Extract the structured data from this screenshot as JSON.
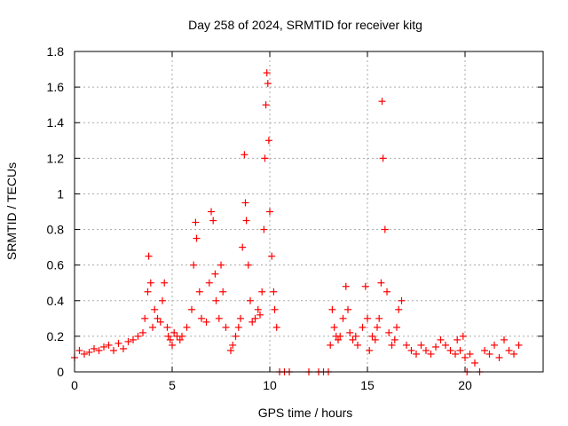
{
  "chart_data": {
    "type": "scatter",
    "title": "Day 258 of 2024, SRMTID for receiver kitg",
    "xlabel": "GPS time / hours",
    "ylabel": "SRMTID / TECUs",
    "xlim": [
      0,
      24
    ],
    "ylim": [
      0,
      1.8
    ],
    "xticks": [
      0,
      5,
      10,
      15,
      20
    ],
    "xtick_labels": [
      "0",
      "5",
      "10",
      "15",
      "20"
    ],
    "yticks": [
      0,
      0.2,
      0.4,
      0.6,
      0.8,
      1.0,
      1.2,
      1.4,
      1.6,
      1.8
    ],
    "ytick_labels": [
      "0",
      "0.2",
      "0.4",
      "0.6",
      "0.8",
      "1",
      "1.2",
      "1.4",
      "1.6",
      "1.8"
    ],
    "grid": true,
    "marker": "+",
    "color": "#ff0000",
    "series": [
      {
        "name": "SRMTID",
        "x": [
          0.0,
          0.25,
          0.5,
          0.75,
          1.0,
          1.25,
          1.5,
          1.75,
          2.0,
          2.25,
          2.5,
          2.75,
          3.0,
          3.25,
          3.5,
          3.6,
          3.75,
          3.8,
          3.9,
          4.0,
          4.1,
          4.25,
          4.4,
          4.5,
          4.6,
          4.75,
          4.8,
          4.9,
          5.0,
          5.1,
          5.25,
          5.4,
          5.5,
          5.75,
          6.0,
          6.1,
          6.2,
          6.25,
          6.4,
          6.5,
          6.75,
          6.9,
          7.0,
          7.1,
          7.2,
          7.25,
          7.4,
          7.5,
          7.6,
          7.75,
          8.0,
          8.1,
          8.25,
          8.4,
          8.5,
          8.6,
          8.7,
          8.75,
          8.8,
          8.9,
          9.0,
          9.1,
          9.25,
          9.4,
          9.5,
          9.6,
          9.7,
          9.75,
          9.8,
          9.85,
          9.9,
          9.95,
          10.0,
          10.1,
          10.2,
          10.25,
          10.35,
          10.5,
          10.75,
          11.0,
          12.0,
          12.5,
          12.75,
          13.0,
          13.1,
          13.2,
          13.3,
          13.4,
          13.5,
          13.6,
          13.75,
          13.9,
          14.0,
          14.1,
          14.25,
          14.4,
          14.5,
          14.75,
          14.9,
          15.0,
          15.1,
          15.25,
          15.4,
          15.5,
          15.6,
          15.7,
          15.75,
          15.8,
          15.9,
          16.0,
          16.1,
          16.25,
          16.4,
          16.5,
          16.6,
          16.75,
          17.0,
          17.25,
          17.5,
          17.75,
          18.0,
          18.25,
          18.5,
          18.75,
          19.0,
          19.25,
          19.5,
          19.6,
          19.75,
          19.9,
          20.0,
          20.1,
          20.25,
          20.5,
          20.75,
          21.0,
          21.25,
          21.5,
          21.75,
          22.0,
          22.25,
          22.5,
          22.75
        ],
        "y": [
          0.08,
          0.12,
          0.1,
          0.11,
          0.13,
          0.12,
          0.14,
          0.15,
          0.12,
          0.16,
          0.13,
          0.17,
          0.18,
          0.2,
          0.22,
          0.3,
          0.45,
          0.65,
          0.5,
          0.25,
          0.35,
          0.3,
          0.28,
          0.4,
          0.5,
          0.25,
          0.2,
          0.18,
          0.15,
          0.22,
          0.2,
          0.18,
          0.2,
          0.25,
          0.35,
          0.6,
          0.84,
          0.75,
          0.45,
          0.3,
          0.28,
          0.5,
          0.9,
          0.85,
          0.55,
          0.4,
          0.3,
          0.6,
          0.45,
          0.25,
          0.12,
          0.15,
          0.2,
          0.25,
          0.3,
          0.7,
          1.22,
          0.95,
          0.85,
          0.6,
          0.4,
          0.28,
          0.3,
          0.35,
          0.32,
          0.45,
          0.8,
          1.2,
          1.5,
          1.68,
          1.62,
          1.3,
          0.9,
          0.65,
          0.45,
          0.35,
          0.25,
          0.0,
          0.0,
          0.0,
          0.0,
          0.0,
          0.0,
          0.0,
          0.15,
          0.35,
          0.25,
          0.2,
          0.18,
          0.2,
          0.3,
          0.48,
          0.35,
          0.22,
          0.18,
          0.2,
          0.15,
          0.25,
          0.48,
          0.3,
          0.12,
          0.2,
          0.18,
          0.25,
          0.3,
          0.5,
          1.52,
          1.2,
          0.8,
          0.45,
          0.22,
          0.15,
          0.18,
          0.25,
          0.35,
          0.4,
          0.15,
          0.12,
          0.1,
          0.15,
          0.12,
          0.1,
          0.14,
          0.18,
          0.15,
          0.12,
          0.1,
          0.18,
          0.12,
          0.2,
          0.08,
          0.0,
          0.1,
          0.05,
          0.0,
          0.12,
          0.1,
          0.15,
          0.08,
          0.18,
          0.12,
          0.1,
          0.15
        ]
      }
    ]
  }
}
